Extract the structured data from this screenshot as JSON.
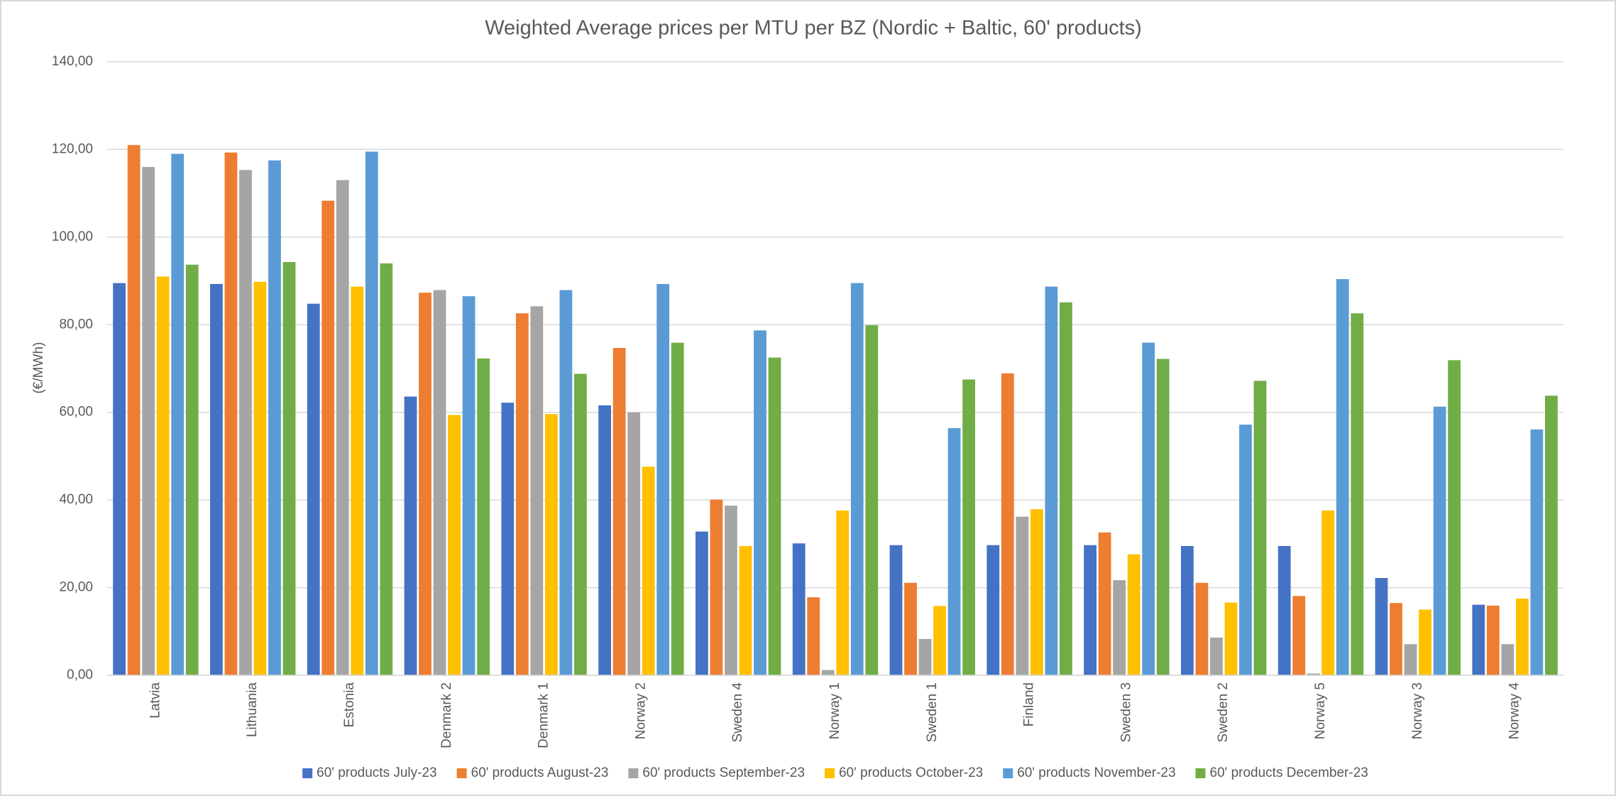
{
  "chart_data": {
    "type": "bar",
    "title": "Weighted Average prices per MTU per BZ (Nordic + Baltic,  60' products)",
    "y_label": "(€/MWh)",
    "categories": [
      "Latvia",
      "Lithuania",
      "Estonia",
      "Denmark 2",
      "Denmark 1",
      "Norway 2",
      "Sweden 4",
      "Norway 1",
      "Sweden 1",
      "Finland",
      "Sweden 3",
      "Sweden 2",
      "Norway 5",
      "Norway 3",
      "Norway 4"
    ],
    "series": [
      {
        "name": "60' products July-23",
        "color": "#4472c4",
        "values": [
          89.5,
          89.3,
          84.8,
          63.6,
          62.2,
          61.6,
          32.8,
          30.1,
          29.7,
          29.7,
          29.7,
          29.5,
          29.5,
          22.2,
          16.1
        ]
      },
      {
        "name": "60' products August-23",
        "color": "#ed7d31",
        "values": [
          121,
          119.3,
          108.3,
          87.3,
          82.6,
          74.7,
          40.1,
          17.8,
          21.1,
          68.9,
          32.6,
          21.1,
          18.1,
          16.5,
          15.9
        ]
      },
      {
        "name": "60' products September-23",
        "color": "#a5a5a5",
        "values": [
          116,
          115.3,
          113,
          87.9,
          84.2,
          60,
          38.7,
          1.2,
          8.3,
          36.2,
          21.7,
          8.6,
          0.4,
          7.1,
          7.1
        ]
      },
      {
        "name": "60' products October-23",
        "color": "#ffc000",
        "values": [
          91,
          89.8,
          88.7,
          59.4,
          59.6,
          47.6,
          29.5,
          37.6,
          15.8,
          37.9,
          27.6,
          16.6,
          37.6,
          15,
          17.5
        ]
      },
      {
        "name": "60' products November-23",
        "color": "#5b9bd5",
        "values": [
          119,
          117.5,
          119.5,
          86.5,
          87.9,
          89.3,
          78.7,
          89.5,
          56.4,
          88.7,
          75.9,
          57.2,
          90.4,
          61.3,
          56.1
        ]
      },
      {
        "name": "60' products December-23",
        "color": "#70ad47",
        "values": [
          93.7,
          94.3,
          94,
          72.3,
          68.8,
          75.9,
          72.5,
          79.9,
          67.5,
          85.1,
          72.2,
          67.2,
          82.6,
          71.9,
          63.8
        ]
      }
    ],
    "ylim": [
      0,
      140
    ],
    "yticks": [
      {
        "value": 0,
        "label": "0,00"
      },
      {
        "value": 20,
        "label": "20,00"
      },
      {
        "value": 40,
        "label": "40,00"
      },
      {
        "value": 60,
        "label": "60,00"
      },
      {
        "value": 80,
        "label": "80,00"
      },
      {
        "value": 100,
        "label": "100,00"
      },
      {
        "value": 120,
        "label": "120,00"
      },
      {
        "value": 140,
        "label": "140,00"
      }
    ],
    "grid": true,
    "legend": "bottom"
  }
}
